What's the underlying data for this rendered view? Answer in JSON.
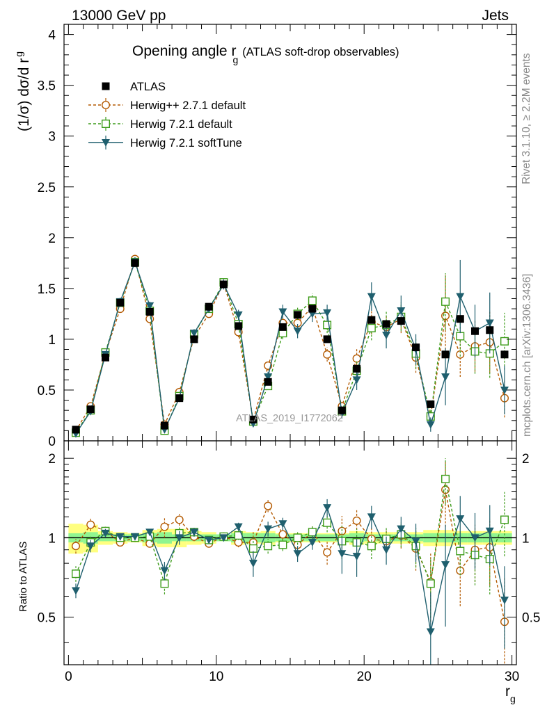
{
  "header": {
    "energy_label": "13000 GeV pp",
    "process_label": "Jets"
  },
  "side_labels": {
    "rivet": "Rivet 3.1.10, ≥ 2.2M events",
    "mcplots": "mcplots.cern.ch [arXiv:1306.3436]"
  },
  "chart_data": [
    {
      "type": "scatter",
      "title": "Opening angle r_g (ATLAS soft-drop observables)",
      "title_main": "Opening angle r",
      "title_sub": "g",
      "title_suffix": "(ATLAS soft-drop observables)",
      "ylabel": "(1/σ) dσ/d r",
      "ylabel_sub": "g",
      "analysis_id": "ATLAS_2019_I1772062",
      "xlim": [
        -0.3,
        30.3
      ],
      "ylim": [
        0,
        4.1
      ],
      "yticks": [
        "0",
        "0.5",
        "1",
        "1.5",
        "2",
        "2.5",
        "3",
        "3.5",
        "4"
      ],
      "legend_position": "top-left",
      "legend": [
        "ATLAS",
        "Herwig++ 2.7.1 default",
        "Herwig 7.2.1 default",
        "Herwig 7.2.1 softTune"
      ],
      "x": [
        0.5,
        1.5,
        2.5,
        3.5,
        4.5,
        5.5,
        6.5,
        7.5,
        8.5,
        9.5,
        10.5,
        11.5,
        12.5,
        13.5,
        14.5,
        15.5,
        16.5,
        17.5,
        18.5,
        19.5,
        20.5,
        21.5,
        22.5,
        23.5,
        24.5,
        25.5,
        26.5,
        27.5,
        28.5,
        29.5
      ],
      "series": [
        {
          "name": "ATLAS",
          "color": "#000000",
          "marker": "filled-square",
          "values": [
            0.11,
            0.31,
            0.82,
            1.36,
            1.75,
            1.27,
            0.15,
            0.42,
            1.0,
            1.32,
            1.54,
            1.13,
            0.21,
            0.58,
            1.12,
            1.24,
            1.3,
            1.0,
            0.3,
            0.71,
            1.19,
            1.15,
            1.18,
            0.92,
            0.36,
            0.85,
            1.2,
            1.08,
            1.09,
            0.85
          ]
        },
        {
          "name": "Herwig++ 2.7.1 default",
          "color": "#b35900",
          "marker": "open-circle",
          "values": [
            0.1,
            0.34,
            0.86,
            1.3,
            1.79,
            1.2,
            0.16,
            0.48,
            1.02,
            1.25,
            1.55,
            1.07,
            0.2,
            0.74,
            1.16,
            1.16,
            1.32,
            0.85,
            0.34,
            0.81,
            1.17,
            1.12,
            1.2,
            0.82,
            0.24,
            1.23,
            0.85,
            0.93,
            0.97,
            0.42
          ],
          "errors": [
            0.01,
            0.02,
            0.03,
            0.04,
            0.05,
            0.04,
            0.02,
            0.03,
            0.04,
            0.04,
            0.05,
            0.05,
            0.02,
            0.05,
            0.06,
            0.06,
            0.08,
            0.07,
            0.05,
            0.1,
            0.12,
            0.12,
            0.14,
            0.15,
            0.07,
            0.4,
            0.22,
            0.25,
            0.3,
            0.19
          ]
        },
        {
          "name": "Herwig 7.2.1 default",
          "color": "#3d9c1a",
          "marker": "open-square",
          "values": [
            0.08,
            0.3,
            0.87,
            1.36,
            1.76,
            1.28,
            0.1,
            0.44,
            1.05,
            1.3,
            1.56,
            1.15,
            0.19,
            0.54,
            1.06,
            1.25,
            1.38,
            1.14,
            0.29,
            0.69,
            1.11,
            1.14,
            1.22,
            0.86,
            0.24,
            1.37,
            1.03,
            0.88,
            0.86,
            0.98
          ],
          "errors": [
            0.01,
            0.02,
            0.03,
            0.04,
            0.05,
            0.04,
            0.01,
            0.03,
            0.04,
            0.04,
            0.05,
            0.05,
            0.02,
            0.04,
            0.06,
            0.06,
            0.07,
            0.08,
            0.05,
            0.1,
            0.12,
            0.13,
            0.14,
            0.15,
            0.06,
            0.28,
            0.2,
            0.22,
            0.24,
            0.28
          ]
        },
        {
          "name": "Herwig 7.2.1 softTune",
          "color": "#1f5f6e",
          "marker": "filled-triangle-down",
          "values": [
            0.07,
            0.29,
            0.85,
            1.37,
            1.76,
            1.33,
            0.11,
            0.42,
            1.06,
            1.3,
            1.54,
            1.24,
            0.17,
            0.63,
            1.27,
            1.08,
            1.25,
            1.26,
            0.27,
            0.6,
            1.42,
            1.04,
            1.28,
            0.9,
            0.16,
            0.63,
            1.42,
            1.08,
            1.16,
            0.5
          ],
          "errors": [
            0.01,
            0.02,
            0.03,
            0.04,
            0.05,
            0.04,
            0.01,
            0.03,
            0.04,
            0.04,
            0.05,
            0.05,
            0.02,
            0.05,
            0.07,
            0.07,
            0.08,
            0.08,
            0.05,
            0.1,
            0.14,
            0.13,
            0.15,
            0.15,
            0.07,
            0.28,
            0.36,
            0.26,
            0.3,
            0.24
          ]
        }
      ]
    },
    {
      "type": "scatter",
      "ylabel": "Ratio to ATLAS",
      "xlabel": "r",
      "xlabel_sub": "g",
      "xlim": [
        -0.3,
        30.3
      ],
      "ylim": [
        0.33,
        2.33
      ],
      "xticks": [
        "0",
        "10",
        "20",
        "30"
      ],
      "yticks": [
        "0.5",
        "1",
        "2"
      ],
      "band_stat": [
        0.04,
        0.05,
        0.03,
        0.03,
        0.03,
        0.04,
        0.05,
        0.03,
        0.03,
        0.03,
        0.03,
        0.04,
        0.04,
        0.04,
        0.03,
        0.03,
        0.03,
        0.03,
        0.03,
        0.04,
        0.03,
        0.03,
        0.03,
        0.03,
        0.04,
        0.04,
        0.04,
        0.04,
        0.04,
        0.04
      ],
      "band_total": [
        0.13,
        0.12,
        0.06,
        0.05,
        0.04,
        0.07,
        0.08,
        0.08,
        0.06,
        0.05,
        0.03,
        0.06,
        0.05,
        0.06,
        0.04,
        0.04,
        0.04,
        0.04,
        0.04,
        0.06,
        0.05,
        0.05,
        0.05,
        0.05,
        0.07,
        0.07,
        0.06,
        0.06,
        0.06,
        0.06
      ],
      "series": [
        {
          "name": "Herwig++ 2.7.1 default",
          "color": "#b35900",
          "values": [
            0.93,
            1.12,
            1.06,
            0.96,
            1.0,
            0.95,
            1.1,
            1.17,
            1.01,
            0.95,
            1.01,
            0.96,
            0.96,
            1.32,
            1.03,
            0.94,
            1.05,
            0.88,
            1.06,
            1.16,
            0.99,
            0.97,
            1.02,
            0.91,
            0.68,
            1.52,
            0.75,
            0.9,
            0.92,
            0.48
          ],
          "errors": [
            0.06,
            0.06,
            0.04,
            0.03,
            0.03,
            0.03,
            0.1,
            0.06,
            0.04,
            0.03,
            0.03,
            0.04,
            0.1,
            0.07,
            0.05,
            0.06,
            0.06,
            0.09,
            0.15,
            0.12,
            0.1,
            0.1,
            0.11,
            0.16,
            0.2,
            0.42,
            0.2,
            0.22,
            0.26,
            0.23
          ]
        },
        {
          "name": "Herwig 7.2.1 default",
          "color": "#3d9c1a",
          "values": [
            0.73,
            0.96,
            1.06,
            1.0,
            1.0,
            1.01,
            0.67,
            1.04,
            1.05,
            0.98,
            1.01,
            1.02,
            0.91,
            0.93,
            0.94,
            1.0,
            1.05,
            1.14,
            0.97,
            0.96,
            0.93,
            0.99,
            1.03,
            0.93,
            0.67,
            1.67,
            0.89,
            0.86,
            0.83,
            1.17
          ],
          "errors": [
            0.05,
            0.05,
            0.04,
            0.03,
            0.03,
            0.03,
            0.06,
            0.06,
            0.04,
            0.03,
            0.03,
            0.04,
            0.09,
            0.06,
            0.05,
            0.06,
            0.06,
            0.09,
            0.14,
            0.12,
            0.1,
            0.1,
            0.11,
            0.16,
            0.17,
            0.33,
            0.17,
            0.2,
            0.22,
            0.32
          ]
        },
        {
          "name": "Herwig 7.2.1 softTune",
          "color": "#1f5f6e",
          "values": [
            0.63,
            0.93,
            1.04,
            1.01,
            1.01,
            1.05,
            0.75,
            1.0,
            1.05,
            0.98,
            1.0,
            1.1,
            0.8,
            1.08,
            1.13,
            0.87,
            0.96,
            1.3,
            0.87,
            0.85,
            1.2,
            0.9,
            1.08,
            0.97,
            0.44,
            0.79,
            1.18,
            1.0,
            1.06,
            0.58
          ],
          "errors": [
            0.04,
            0.05,
            0.04,
            0.03,
            0.03,
            0.03,
            0.06,
            0.06,
            0.04,
            0.03,
            0.03,
            0.04,
            0.09,
            0.07,
            0.06,
            0.06,
            0.06,
            0.1,
            0.14,
            0.14,
            0.12,
            0.11,
            0.12,
            0.16,
            0.18,
            0.33,
            0.26,
            0.24,
            0.27,
            0.2
          ]
        }
      ]
    }
  ]
}
